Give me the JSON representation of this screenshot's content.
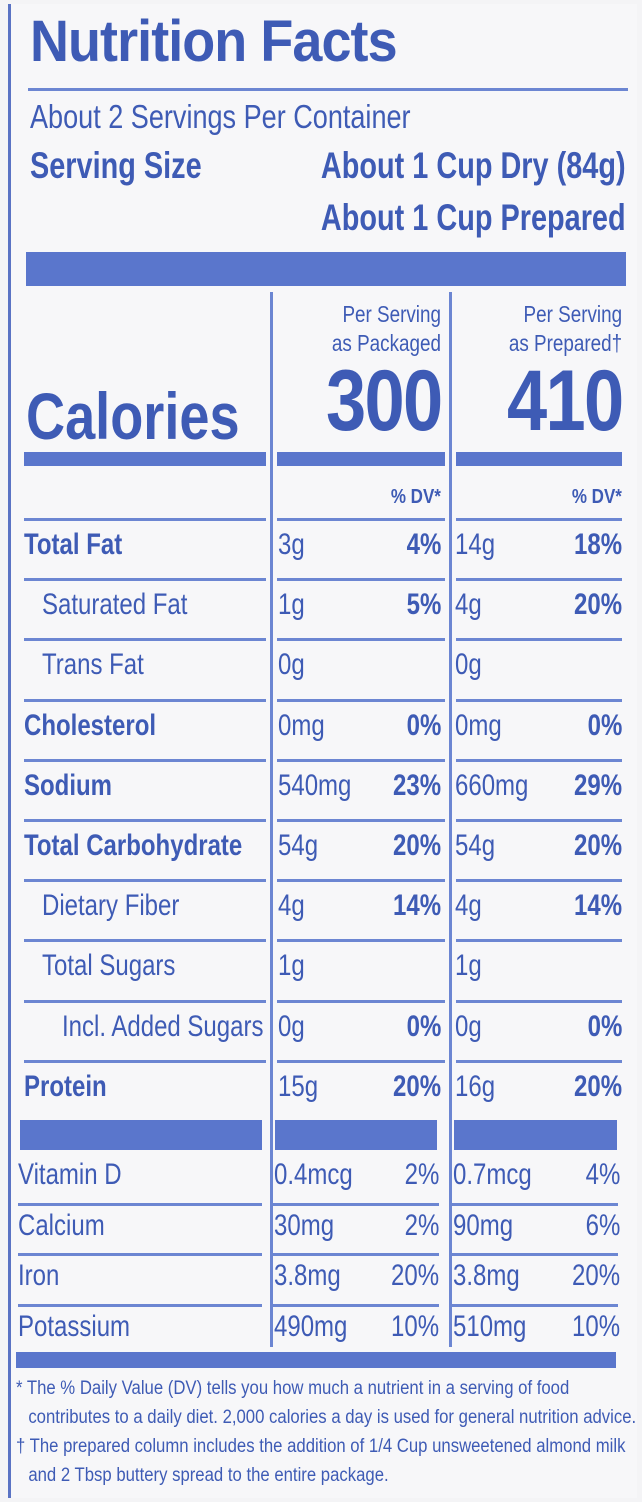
{
  "title": "Nutrition Facts",
  "servings_per_container": "About 2 Servings Per Container",
  "serving_size_label": "Serving Size",
  "serving_size_dry": "About 1 Cup Dry (84g)",
  "serving_size_prepared": "About 1 Cup Prepared",
  "columns": {
    "packaged_line1": "Per Serving",
    "packaged_line2": "as Packaged",
    "prepared_line1": "Per Serving",
    "prepared_line2": "as Prepared†"
  },
  "calories": {
    "label": "Calories",
    "packaged": "300",
    "prepared": "410"
  },
  "dv_header": "% DV*",
  "nutrients": [
    {
      "label": "Total Fat",
      "bold": true,
      "indent": 0,
      "amt1": "3g",
      "pct1": "4%",
      "amt2": "14g",
      "pct2": "18%"
    },
    {
      "label": "Saturated Fat",
      "bold": false,
      "indent": 1,
      "amt1": "1g",
      "pct1": "5%",
      "amt2": "4g",
      "pct2": "20%"
    },
    {
      "label": "Trans Fat",
      "bold": false,
      "indent": 1,
      "amt1": "0g",
      "pct1": "",
      "amt2": "0g",
      "pct2": ""
    },
    {
      "label": "Cholesterol",
      "bold": true,
      "indent": 0,
      "amt1": "0mg",
      "pct1": "0%",
      "amt2": "0mg",
      "pct2": "0%"
    },
    {
      "label": "Sodium",
      "bold": true,
      "indent": 0,
      "amt1": "540mg",
      "pct1": "23%",
      "amt2": "660mg",
      "pct2": "29%"
    },
    {
      "label": "Total Carbohydrate",
      "bold": true,
      "indent": 0,
      "amt1": "54g",
      "pct1": "20%",
      "amt2": "54g",
      "pct2": "20%"
    },
    {
      "label": "Dietary Fiber",
      "bold": false,
      "indent": 1,
      "amt1": "4g",
      "pct1": "14%",
      "amt2": "4g",
      "pct2": "14%"
    },
    {
      "label": "Total Sugars",
      "bold": false,
      "indent": 1,
      "amt1": "1g",
      "pct1": "",
      "amt2": "1g",
      "pct2": ""
    },
    {
      "label": "Incl. Added Sugars",
      "bold": false,
      "indent": 2,
      "amt1": "0g",
      "pct1": "0%",
      "amt2": "0g",
      "pct2": "0%"
    },
    {
      "label": "Protein",
      "bold": true,
      "indent": 0,
      "amt1": "15g",
      "pct1": "20%",
      "amt2": "16g",
      "pct2": "20%"
    }
  ],
  "vitamins": [
    {
      "label": "Vitamin D",
      "amt1": "0.4mcg",
      "pct1": "2%",
      "amt2": "0.7mcg",
      "pct2": "4%"
    },
    {
      "label": "Calcium",
      "amt1": "30mg",
      "pct1": "2%",
      "amt2": "90mg",
      "pct2": "6%"
    },
    {
      "label": "Iron",
      "amt1": "3.8mg",
      "pct1": "20%",
      "amt2": "3.8mg",
      "pct2": "20%"
    },
    {
      "label": "Potassium",
      "amt1": "490mg",
      "pct1": "10%",
      "amt2": "510mg",
      "pct2": "10%"
    }
  ],
  "footnotes": {
    "dv_line1": "* The % Daily Value (DV) tells you how much a nutrient in a serving of food",
    "dv_line2": "contributes to a daily diet. 2,000 calories a day is used for general nutrition advice.",
    "prep_line1": "† The prepared column includes the addition of 1/4 Cup unsweetened almond milk",
    "prep_line2": "and 2 Tbsp buttery spread to the entire package."
  },
  "colors": {
    "ink": "#3e5bb5",
    "bar": "#5a76cc",
    "background": "#f7f7f9"
  }
}
